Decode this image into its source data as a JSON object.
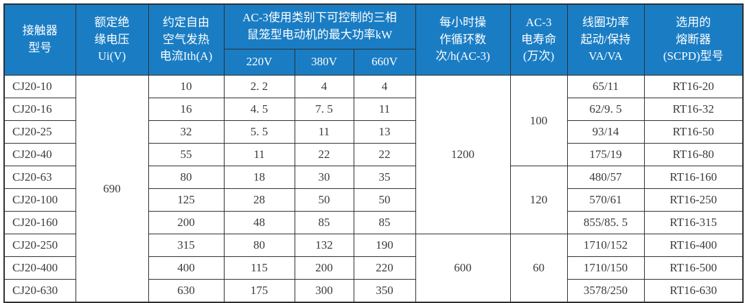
{
  "colors": {
    "header_bg": "#1a7dc4",
    "header_text": "#ffffff",
    "border": "#2e2e2e",
    "body_text": "#3a3a3a",
    "page_bg": "#ffffff"
  },
  "table": {
    "header": {
      "contactor_model": "接触器\n型号",
      "rated_insulation_voltage": "额定绝\n缘电压\nUi(V)",
      "conventional_thermal_current": "约定自由\n空气发热\n电流Ith(A)",
      "ac3_max_power_group": "AC-3使用类别下可控制的三相\n鼠笼型电动机的最大功率kW",
      "voltage_220": "220V",
      "voltage_380": "380V",
      "voltage_660": "660V",
      "operating_cycles": "每小时操\n作循环数\n次/h(AC-3)",
      "ac3_electrical_life": "AC-3\n电寿命\n(万次)",
      "coil_power": "线圈功率\n起动/保持\nVA/VA",
      "fuse_model": "选用的\n熔断器\n(SCPD)型号"
    },
    "rows": [
      {
        "model": "CJ20-10",
        "ith": "10",
        "p220": "2. 2",
        "p380": "4",
        "p660": "4",
        "coil": "65/11",
        "fuse": "RT16-20"
      },
      {
        "model": "CJ20-16",
        "ith": "16",
        "p220": "4. 5",
        "p380": "7. 5",
        "p660": "11",
        "coil": "62/9. 5",
        "fuse": "RT16-32"
      },
      {
        "model": "CJ20-25",
        "ith": "32",
        "p220": "5. 5",
        "p380": "11",
        "p660": "13",
        "coil": "93/14",
        "fuse": "RT16-50"
      },
      {
        "model": "CJ20-40",
        "ith": "55",
        "p220": "11",
        "p380": "22",
        "p660": "22",
        "coil": "175/19",
        "fuse": "RT16-80"
      },
      {
        "model": "CJ20-63",
        "ith": "80",
        "p220": "18",
        "p380": "30",
        "p660": "35",
        "coil": "480/57",
        "fuse": "RT16-160"
      },
      {
        "model": "CJ20-100",
        "ith": "125",
        "p220": "28",
        "p380": "50",
        "p660": "50",
        "coil": "570/61",
        "fuse": "RT16-250"
      },
      {
        "model": "CJ20-160",
        "ith": "200",
        "p220": "48",
        "p380": "85",
        "p660": "85",
        "coil": "855/85. 5",
        "fuse": "RT16-315"
      },
      {
        "model": "CJ20-250",
        "ith": "315",
        "p220": "80",
        "p380": "132",
        "p660": "190",
        "coil": "1710/152",
        "fuse": "RT16-400"
      },
      {
        "model": "CJ20-400",
        "ith": "400",
        "p220": "115",
        "p380": "200",
        "p660": "220",
        "coil": "1710/150",
        "fuse": "RT16-500"
      },
      {
        "model": "CJ20-630",
        "ith": "630",
        "p220": "175",
        "p380": "300",
        "p660": "350",
        "coil": "3578/250",
        "fuse": "RT16-630"
      }
    ],
    "spans": {
      "ui": {
        "value": "690",
        "start": 0,
        "span": 10
      },
      "cycles": [
        {
          "value": "1200",
          "start": 0,
          "span": 7
        },
        {
          "value": "600",
          "start": 7,
          "span": 3
        }
      ],
      "life": [
        {
          "value": "100",
          "start": 0,
          "span": 4
        },
        {
          "value": "120",
          "start": 4,
          "span": 3
        },
        {
          "value": "60",
          "start": 7,
          "span": 3
        }
      ]
    }
  }
}
